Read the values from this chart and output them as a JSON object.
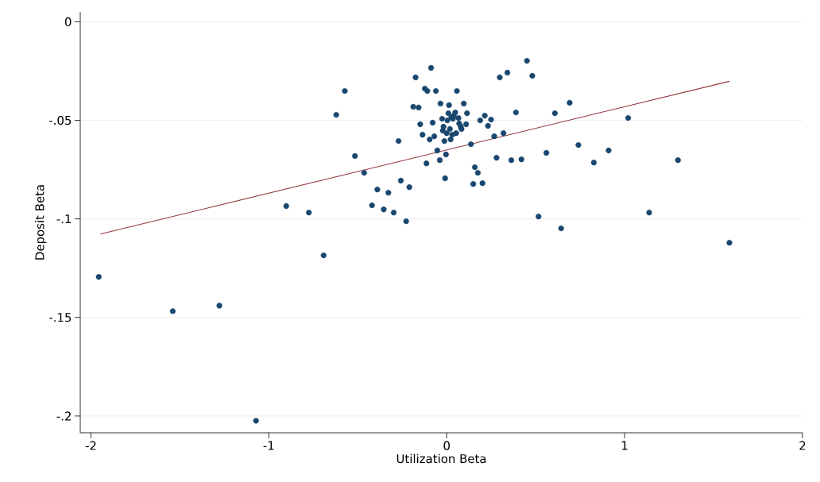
{
  "chart_data": {
    "type": "scatter",
    "xlabel": "Utilization Beta",
    "ylabel": "Deposit Beta",
    "xlim": [
      -2.06,
      2.0
    ],
    "ylim": [
      -0.2085,
      0.005
    ],
    "xticks": [
      -2,
      -1,
      0,
      1,
      2
    ],
    "yticks": [
      0,
      {
        "value": -0.05,
        "label": "-.05"
      },
      {
        "value": -0.1,
        "label": "-.1"
      },
      {
        "value": -0.15,
        "label": "-.15"
      },
      {
        "value": -0.2,
        "label": "-.2"
      }
    ],
    "grid": "y",
    "series": [
      {
        "marker": "circle",
        "color": "#1a476f",
        "x": [
          -1.956,
          -1.54,
          -1.278,
          -1.072,
          -0.902,
          -0.775,
          -0.692,
          -0.621,
          -0.573,
          -0.516,
          -0.464,
          -0.42,
          -0.39,
          -0.354,
          -0.328,
          -0.298,
          -0.258,
          -0.228,
          -0.21,
          -0.271,
          -0.175,
          -0.188,
          -0.158,
          -0.149,
          -0.136,
          -0.123,
          -0.114,
          -0.109,
          -0.096,
          -0.088,
          -0.079,
          -0.07,
          -0.061,
          -0.053,
          -0.039,
          -0.035,
          -0.026,
          -0.022,
          -0.018,
          -0.013,
          -0.009,
          -0.004,
          0.0,
          0.004,
          0.009,
          0.013,
          0.018,
          0.022,
          0.026,
          0.031,
          0.035,
          0.039,
          0.048,
          0.053,
          0.057,
          0.066,
          0.07,
          0.079,
          0.083,
          0.096,
          0.109,
          0.114,
          0.136,
          0.149,
          0.158,
          0.175,
          0.201,
          0.188,
          0.214,
          0.232,
          0.249,
          0.267,
          0.28,
          0.298,
          0.319,
          0.341,
          0.363,
          0.389,
          0.42,
          0.451,
          0.481,
          0.516,
          0.56,
          0.608,
          0.643,
          0.691,
          0.74,
          0.827,
          0.91,
          1.02,
          1.138,
          1.3,
          1.589
        ],
        "values": [
          -0.1294,
          -0.1468,
          -0.144,
          -0.2024,
          -0.0935,
          -0.0968,
          -0.1185,
          -0.0472,
          -0.0351,
          -0.0681,
          -0.0766,
          -0.0931,
          -0.0851,
          -0.0952,
          -0.0867,
          -0.0968,
          -0.0806,
          -0.1012,
          -0.0839,
          -0.0605,
          -0.0282,
          -0.0431,
          -0.0435,
          -0.052,
          -0.0573,
          -0.0339,
          -0.0718,
          -0.0351,
          -0.0597,
          -0.0234,
          -0.0512,
          -0.0581,
          -0.0351,
          -0.0653,
          -0.0702,
          -0.0415,
          -0.0492,
          -0.0552,
          -0.0532,
          -0.0605,
          -0.0794,
          -0.0673,
          -0.0565,
          -0.05,
          -0.0464,
          -0.0423,
          -0.0544,
          -0.0597,
          -0.0484,
          -0.0573,
          -0.0492,
          -0.0476,
          -0.046,
          -0.0565,
          -0.0351,
          -0.0488,
          -0.0516,
          -0.0532,
          -0.0544,
          -0.0415,
          -0.052,
          -0.0464,
          -0.0621,
          -0.0823,
          -0.0738,
          -0.0766,
          -0.0819,
          -0.05,
          -0.0476,
          -0.0528,
          -0.0496,
          -0.0581,
          -0.069,
          -0.0282,
          -0.0565,
          -0.0258,
          -0.0702,
          -0.046,
          -0.0698,
          -0.0198,
          -0.0274,
          -0.0988,
          -0.0665,
          -0.0464,
          -0.1048,
          -0.0411,
          -0.0625,
          -0.0714,
          -0.0653,
          -0.0488,
          -0.0968,
          -0.0702,
          -0.1121
        ]
      },
      {
        "type": "line",
        "marker": "none",
        "color": "#90353b",
        "x": [
          -1.947,
          1.589
        ],
        "values": [
          -0.1077,
          -0.0302
        ]
      }
    ]
  }
}
